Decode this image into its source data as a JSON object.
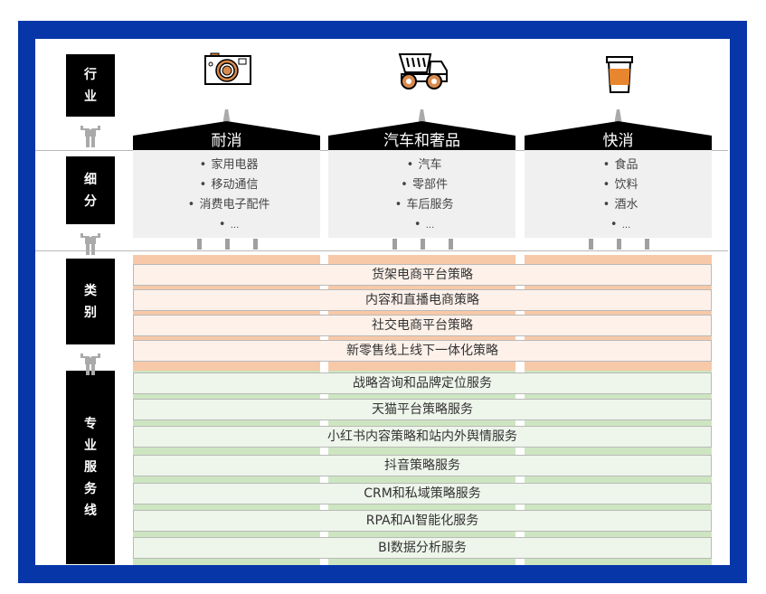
{
  "colors": {
    "frame": "#0636a8",
    "category_band": "#f7c9a8",
    "service_band": "#cde6c1",
    "category_row": "#fdf1ea",
    "service_row": "#eef5ea"
  },
  "side_labels": [
    {
      "chars": [
        "行",
        "业"
      ]
    },
    {
      "chars": [
        "细",
        "分"
      ]
    },
    {
      "chars": [
        "类",
        "别"
      ]
    },
    {
      "chars": [
        "专",
        "业",
        "服",
        "务",
        "线"
      ]
    }
  ],
  "industries": [
    {
      "title": "耐消",
      "icon": "camera-icon",
      "items": [
        "家用电器",
        "移动通信",
        "消费电子配件",
        "..."
      ]
    },
    {
      "title": "汽车和奢品",
      "icon": "truck-icon",
      "items": [
        "汽车",
        "零部件",
        "车后服务",
        "..."
      ]
    },
    {
      "title": "快消",
      "icon": "coffee-cup-icon",
      "items": [
        "食品",
        "饮料",
        "酒水",
        "..."
      ]
    }
  ],
  "categories": [
    "货架电商平台策略",
    "内容和直播电商策略",
    "社交电商平台策略",
    "新零售线上线下一体化策略"
  ],
  "services": [
    "战略咨询和品牌定位服务",
    "天猫平台策略服务",
    "小红书内容策略和站内外舆情服务",
    "抖音策略服务",
    "CRM和私域策略服务",
    "RPA和AI智能化服务",
    "BI数据分析服务"
  ]
}
